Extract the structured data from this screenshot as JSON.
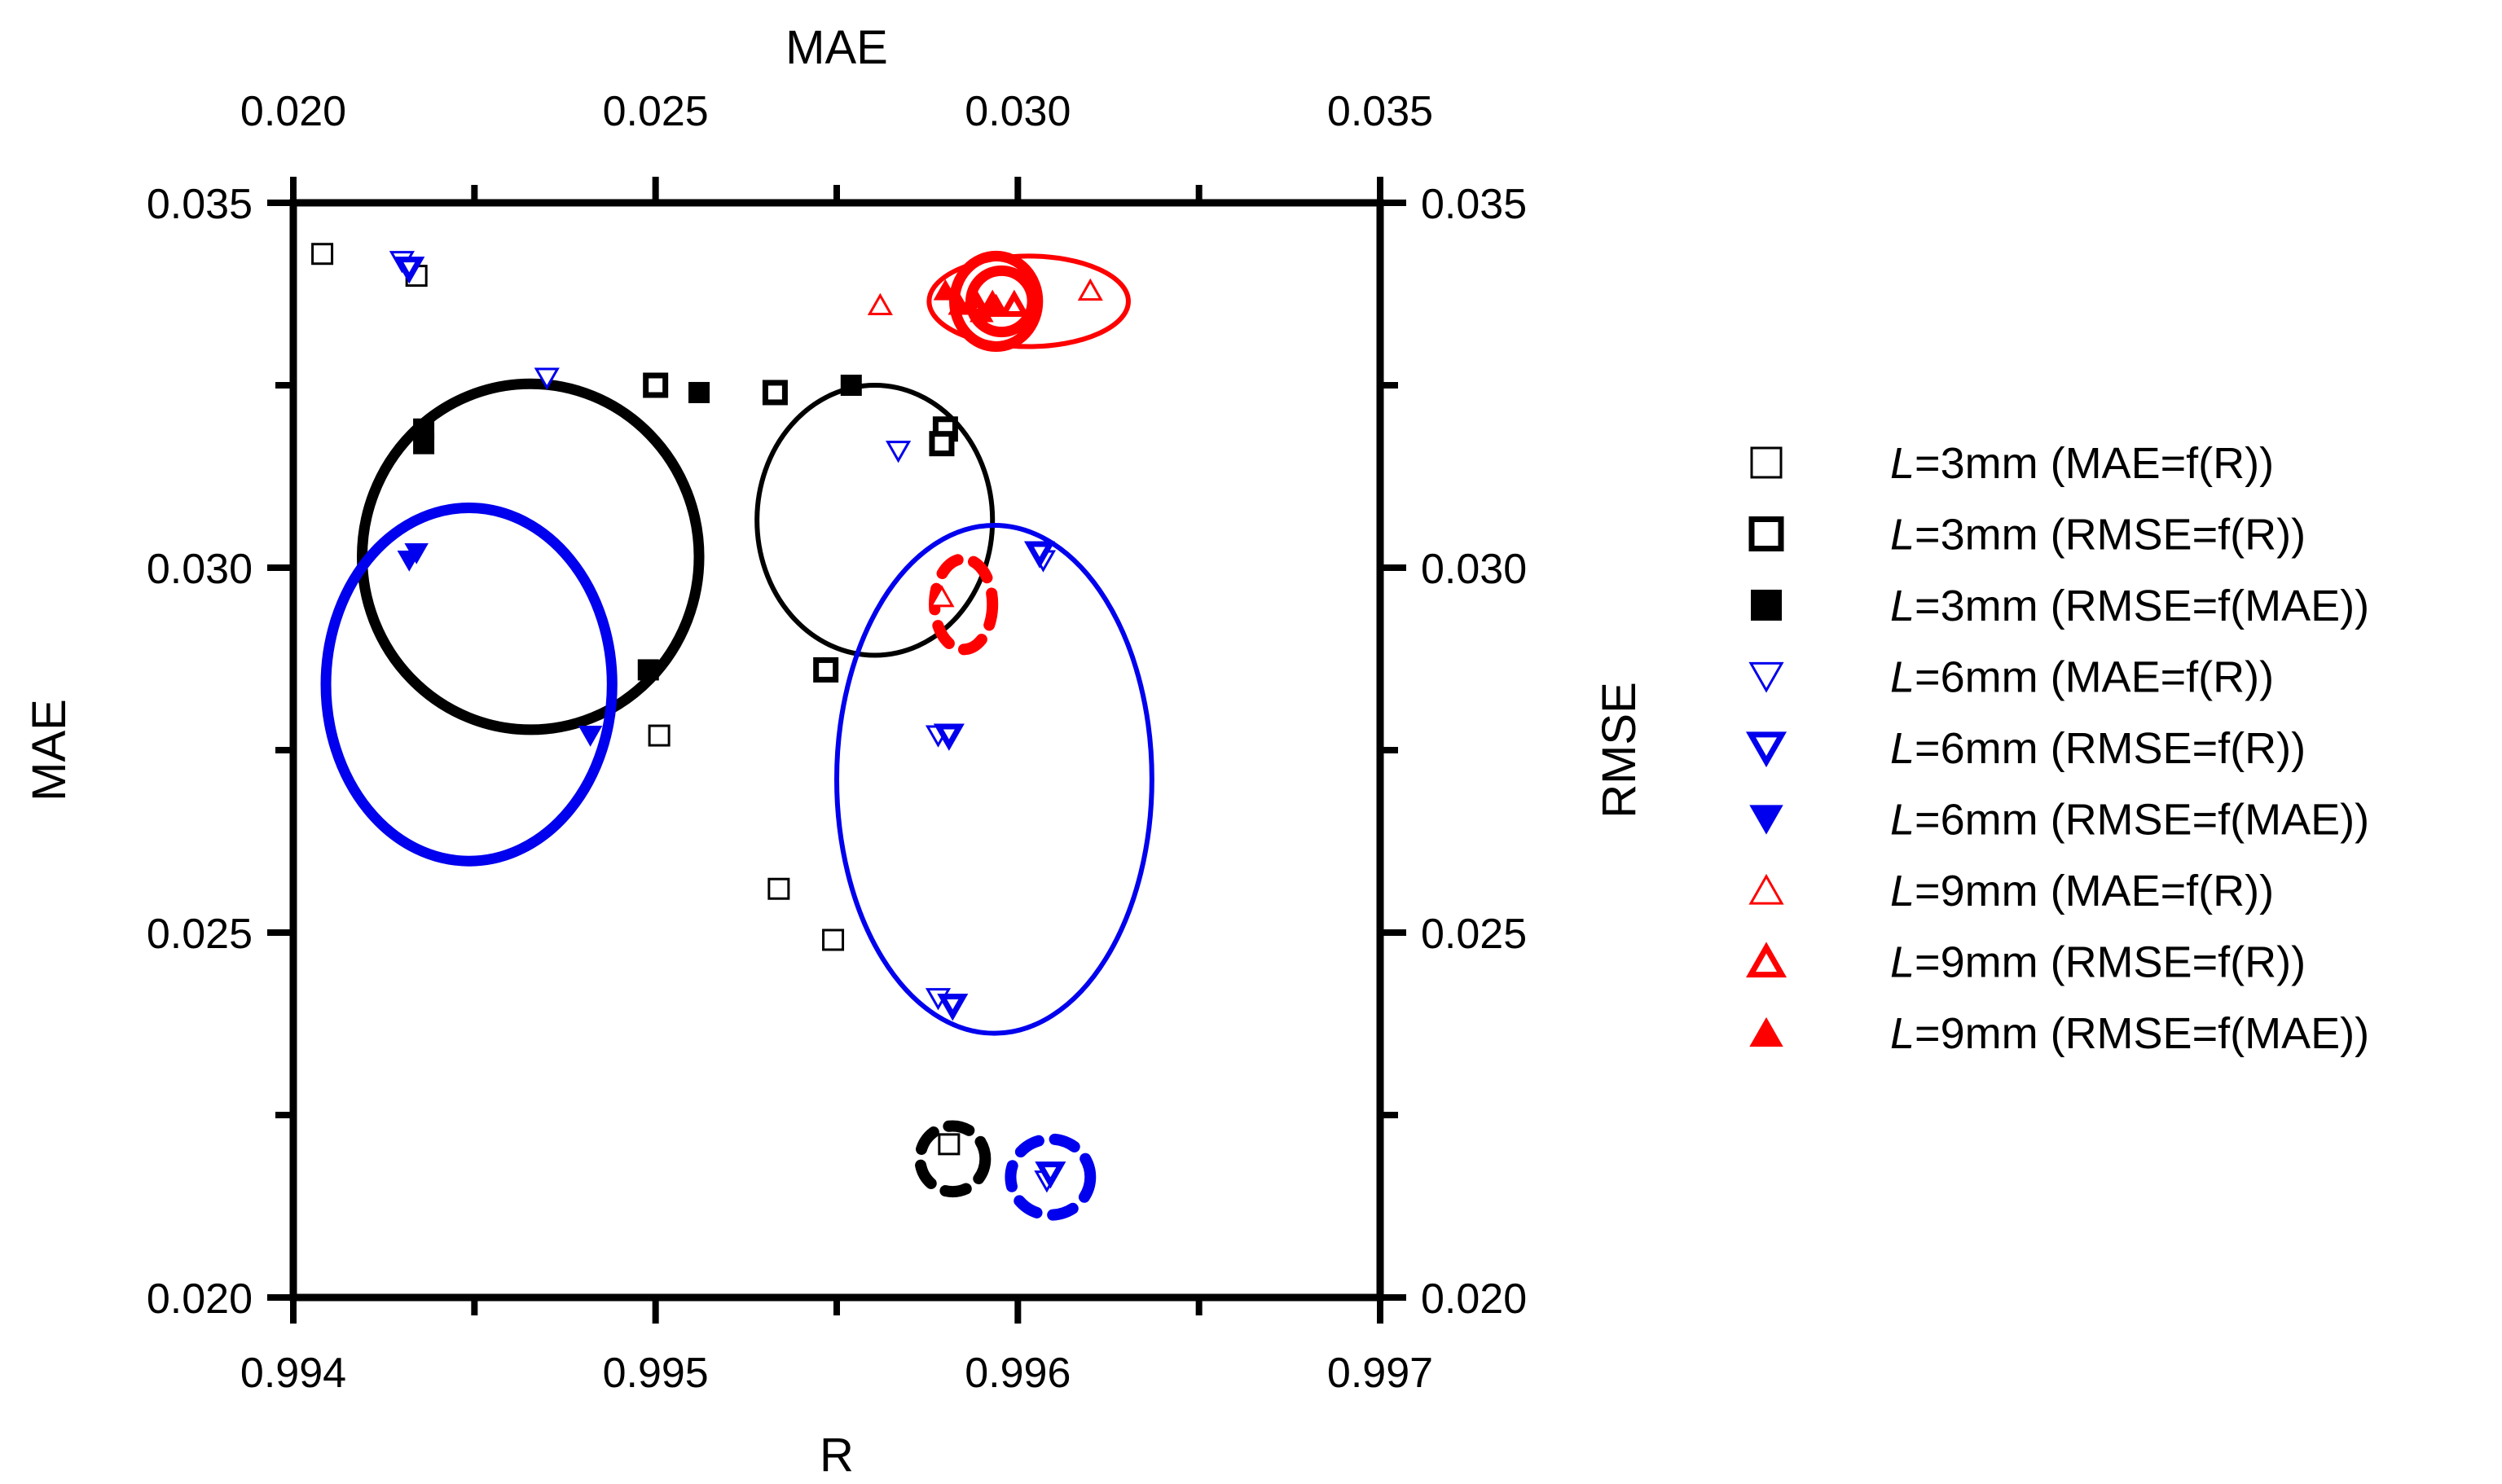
{
  "chart_data": {
    "type": "scatter",
    "title": "",
    "axes": {
      "bottom": {
        "label": "R",
        "range": [
          0.994,
          0.997
        ],
        "ticks": [
          "0.994",
          "0.995",
          "0.996",
          "0.997"
        ],
        "tick_values": [
          0.994,
          0.995,
          0.996,
          0.997
        ],
        "minor_step": 0.0005
      },
      "left": {
        "label": "MAE",
        "range": [
          0.02,
          0.035
        ],
        "ticks": [
          "0.020",
          "0.025",
          "0.030",
          "0.035"
        ],
        "tick_values": [
          0.02,
          0.025,
          0.03,
          0.035
        ],
        "minor_step": 0.0025
      },
      "top": {
        "label": "MAE",
        "range": [
          0.02,
          0.035
        ],
        "ticks": [
          "0.020",
          "0.025",
          "0.030",
          "0.035"
        ],
        "tick_values": [
          0.02,
          0.025,
          0.03,
          0.035
        ],
        "minor_step": 0.0025
      },
      "right": {
        "label": "RMSE",
        "range": [
          0.02,
          0.035
        ],
        "ticks": [
          "0.020",
          "0.025",
          "0.030",
          "0.035"
        ],
        "tick_values": [
          0.02,
          0.025,
          0.03,
          0.035
        ],
        "minor_step": 0.0025
      }
    },
    "legend_position": "right",
    "series": [
      {
        "name": "L=3mm (MAE=f(R))",
        "italic": "L",
        "rest": "=3mm (MAE=f(R))",
        "marker": "square-open-thin",
        "color": "#000000",
        "axes": "bottom-left",
        "points": [
          [
            0.99408,
            0.0343
          ],
          [
            0.99434,
            0.034
          ],
          [
            0.99501,
            0.0277
          ],
          [
            0.99534,
            0.0256
          ],
          [
            0.99549,
            0.0249
          ],
          [
            0.99581,
            0.0221
          ]
        ]
      },
      {
        "name": "L=3mm (RMSE=f(R))",
        "italic": "L",
        "rest": "=3mm (RMSE=f(R))",
        "marker": "square-open-thick",
        "color": "#000000",
        "axes": "bottom-right",
        "points": [
          [
            0.995,
            0.0325
          ],
          [
            0.99533,
            0.0324
          ],
          [
            0.9958,
            0.0319
          ],
          [
            0.99579,
            0.0317
          ],
          [
            0.99547,
            0.0286
          ]
        ]
      },
      {
        "name": "L=3mm (RMSE=f(MAE))",
        "italic": "L",
        "rest": "=3mm (RMSE=f(MAE))",
        "marker": "square-filled",
        "color": "#000000",
        "axes": "top-right",
        "points": [
          [
            0.0218,
            0.0319
          ],
          [
            0.0218,
            0.0317
          ],
          [
            0.0249,
            0.0286
          ],
          [
            0.0256,
            0.0324
          ],
          [
            0.0277,
            0.0325
          ]
        ]
      },
      {
        "name": "L=6mm (MAE=f(R))",
        "italic": "L",
        "rest": "=6mm (MAE=f(R))",
        "marker": "triangle-down-open-thin",
        "color": "#0000ee",
        "axes": "bottom-left",
        "points": [
          [
            0.9943,
            0.0342
          ],
          [
            0.9947,
            0.0326
          ],
          [
            0.99567,
            0.0316
          ],
          [
            0.99578,
            0.0277
          ],
          [
            0.99578,
            0.0241
          ],
          [
            0.99607,
            0.0301
          ],
          [
            0.99608,
            0.0216
          ]
        ]
      },
      {
        "name": "L=6mm (RMSE=f(R))",
        "italic": "L",
        "rest": "=6mm (RMSE=f(R))",
        "marker": "triangle-down-open-thick",
        "color": "#0000ee",
        "axes": "bottom-right",
        "points": [
          [
            0.99432,
            0.0341
          ],
          [
            0.99581,
            0.0277
          ],
          [
            0.99582,
            0.024
          ],
          [
            0.99606,
            0.0302
          ],
          [
            0.99609,
            0.0217
          ]
        ]
      },
      {
        "name": "L=6mm (RMSE=f(MAE))",
        "italic": "L",
        "rest": "=6mm (RMSE=f(MAE))",
        "marker": "triangle-down-filled",
        "color": "#0000ee",
        "axes": "top-right",
        "points": [
          [
            0.0216,
            0.0301
          ],
          [
            0.0217,
            0.0302
          ],
          [
            0.0241,
            0.0277
          ]
        ]
      },
      {
        "name": "L=9mm (MAE=f(R))",
        "italic": "L",
        "rest": "=9mm (MAE=f(R))",
        "marker": "triangle-up-open-thin",
        "color": "#ff0000",
        "axes": "bottom-left",
        "points": [
          [
            0.99562,
            0.0336
          ],
          [
            0.99579,
            0.0296
          ],
          [
            0.99588,
            0.0337
          ],
          [
            0.9962,
            0.0338
          ]
        ]
      },
      {
        "name": "L=9mm (RMSE=f(R))",
        "italic": "L",
        "rest": "=9mm (RMSE=f(R))",
        "marker": "triangle-up-open-thick",
        "color": "#ff0000",
        "axes": "bottom-right",
        "points": [
          [
            0.99593,
            0.0336
          ],
          [
            0.99599,
            0.0336
          ]
        ]
      },
      {
        "name": "L=9mm (RMSE=f(MAE))",
        "italic": "L",
        "rest": "=9mm (RMSE=f(MAE))",
        "marker": "triangle-up-filled",
        "color": "#ff0000",
        "axes": "top-right",
        "points": [
          [
            0.029,
            0.0338
          ],
          [
            0.0292,
            0.0336
          ],
          [
            0.0294,
            0.0337
          ],
          [
            0.0295,
            0.0335
          ],
          [
            0.0297,
            0.0336
          ]
        ]
      }
    ],
    "ellipses": [
      {
        "group": "L=3mm",
        "color": "#000000",
        "style": "thick",
        "axes": "bottom-left",
        "center": [
          0.994655,
          0.03015
        ],
        "radii": [
          0.000465,
          0.00237
        ]
      },
      {
        "group": "L=3mm",
        "color": "#000000",
        "style": "thin",
        "axes": "bottom-left",
        "center": [
          0.995605,
          0.03065
        ],
        "radii": [
          0.000325,
          0.00185
        ]
      },
      {
        "group": "L=3mm",
        "color": "#000000",
        "style": "dashed",
        "axes": "bottom-left",
        "center": [
          0.99582,
          0.0219
        ],
        "radii": [
          9e-05,
          0.00045
        ]
      },
      {
        "group": "L=6mm",
        "color": "#0000ee",
        "style": "thick",
        "axes": "bottom-left",
        "center": [
          0.994485,
          0.0284
        ],
        "radii": [
          0.000395,
          0.00242
        ]
      },
      {
        "group": "L=6mm",
        "color": "#0000ee",
        "style": "thin",
        "axes": "bottom-left",
        "center": [
          0.995935,
          0.0271
        ],
        "radii": [
          0.000435,
          0.00348
        ]
      },
      {
        "group": "L=6mm",
        "color": "#0000ee",
        "style": "dashed",
        "axes": "bottom-left",
        "center": [
          0.99609,
          0.02165
        ],
        "radii": [
          0.00011,
          0.00052
        ]
      },
      {
        "group": "L=9mm",
        "color": "#ff0000",
        "style": "thick",
        "axes": "bottom-left",
        "center": [
          0.99594,
          0.03365
        ],
        "radii": [
          0.000115,
          0.00062
        ]
      },
      {
        "group": "L=9mm",
        "color": "#ff0000",
        "style": "thick",
        "axes": "bottom-left",
        "center": [
          0.995955,
          0.03365
        ],
        "radii": [
          8.5e-05,
          0.00042
        ]
      },
      {
        "group": "L=9mm",
        "color": "#ff0000",
        "style": "thin",
        "axes": "bottom-left",
        "center": [
          0.99603,
          0.03365
        ],
        "radii": [
          0.000275,
          0.00062
        ]
      },
      {
        "group": "L=9mm",
        "color": "#ff0000",
        "style": "dashed",
        "axes": "bottom-left",
        "center": [
          0.99585,
          0.0295
        ],
        "radii": [
          8e-05,
          0.00062
        ]
      }
    ]
  }
}
